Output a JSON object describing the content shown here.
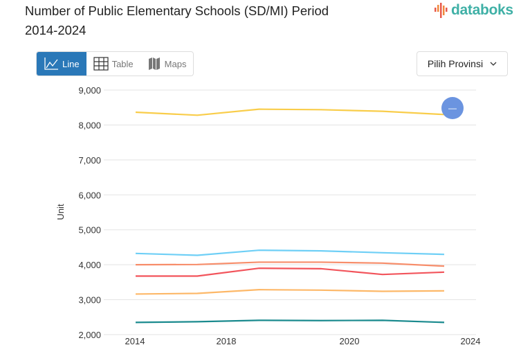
{
  "header": {
    "title": "Number of Public Elementary Schools (SD/MI) Period 2014-2024",
    "logo_text": "databoks"
  },
  "toolbar": {
    "tabs": [
      {
        "label": "Line",
        "icon": "line-chart-icon",
        "active": true
      },
      {
        "label": "Table",
        "icon": "table-icon"
      },
      {
        "label": "Maps",
        "icon": "map-icon"
      }
    ],
    "province_select": "Pilih Provinsi"
  },
  "fab": {
    "icon": "minus-icon"
  },
  "chart_data": {
    "type": "line",
    "ylabel": "Unit",
    "ylim": [
      2000,
      9000
    ],
    "yticks": [
      "9,000",
      "8,000",
      "7,000",
      "6,000",
      "5,000",
      "4,000",
      "3,000",
      "2,000"
    ],
    "xticks": [
      "2014",
      "2018",
      "2020",
      "2024"
    ],
    "grid": true,
    "series": [
      {
        "color": "#f9cd4a",
        "values": [
          8366,
          8280,
          8452,
          8439,
          8392,
          8300
        ]
      },
      {
        "color": "#6ecff6",
        "values": [
          4324,
          4271,
          4416,
          4397,
          4344,
          4297
        ]
      },
      {
        "color": "#f78d6a",
        "values": [
          4000,
          4007,
          4073,
          4073,
          4046,
          3960
        ]
      },
      {
        "color": "#f2545b",
        "values": [
          3676,
          3676,
          3900,
          3887,
          3722,
          3788
        ]
      },
      {
        "color": "#fdb868",
        "values": [
          3161,
          3180,
          3286,
          3273,
          3240,
          3253
        ]
      },
      {
        "color": "#1a8a8e",
        "values": [
          2349,
          2369,
          2409,
          2402,
          2409,
          2349
        ]
      }
    ]
  }
}
